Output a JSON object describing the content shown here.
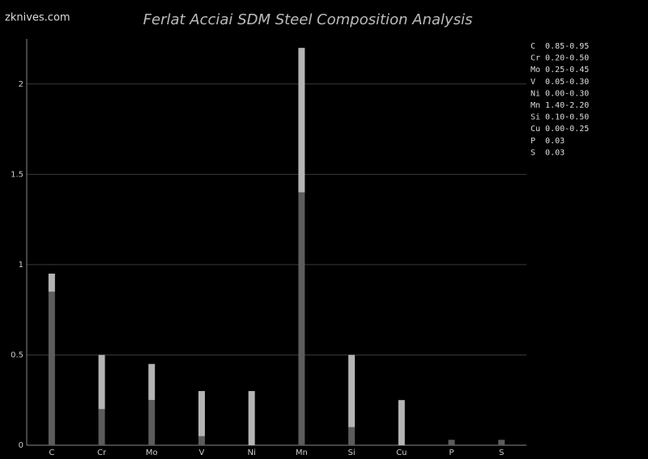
{
  "watermark": "zknives.com",
  "chart_data": {
    "type": "stacked_bar",
    "title": "Ferlat Acciai SDM Steel Composition Analysis",
    "categories": [
      "C",
      "Cr",
      "Mo",
      "V",
      "Ni",
      "Mn",
      "Si",
      "Cu",
      "P",
      "S"
    ],
    "series": [
      {
        "color": "#5c5c5c",
        "values": [
          0.85,
          0.2,
          0.25,
          0.05,
          0,
          1.4,
          0.1,
          0,
          0.03,
          0.03
        ]
      },
      {
        "color": "#b4b4b4",
        "values": [
          0.1,
          0.3,
          0.2,
          0.25,
          0.3,
          0.8,
          0.4,
          0.25,
          0,
          0
        ]
      }
    ],
    "ylim": [
      0,
      2.25
    ],
    "yticks": [
      0,
      0.5,
      1,
      1.5,
      2
    ],
    "grid": true,
    "legend_lines": [
      "C  0.85-0.95",
      "Cr 0.20-0.50",
      "Mo 0.25-0.45",
      "V  0.05-0.30",
      "Ni 0.00-0.30",
      "Mn 1.40-2.20",
      "Si 0.10-0.50",
      "Cu 0.00-0.25",
      "P  0.03",
      "S  0.03"
    ]
  }
}
